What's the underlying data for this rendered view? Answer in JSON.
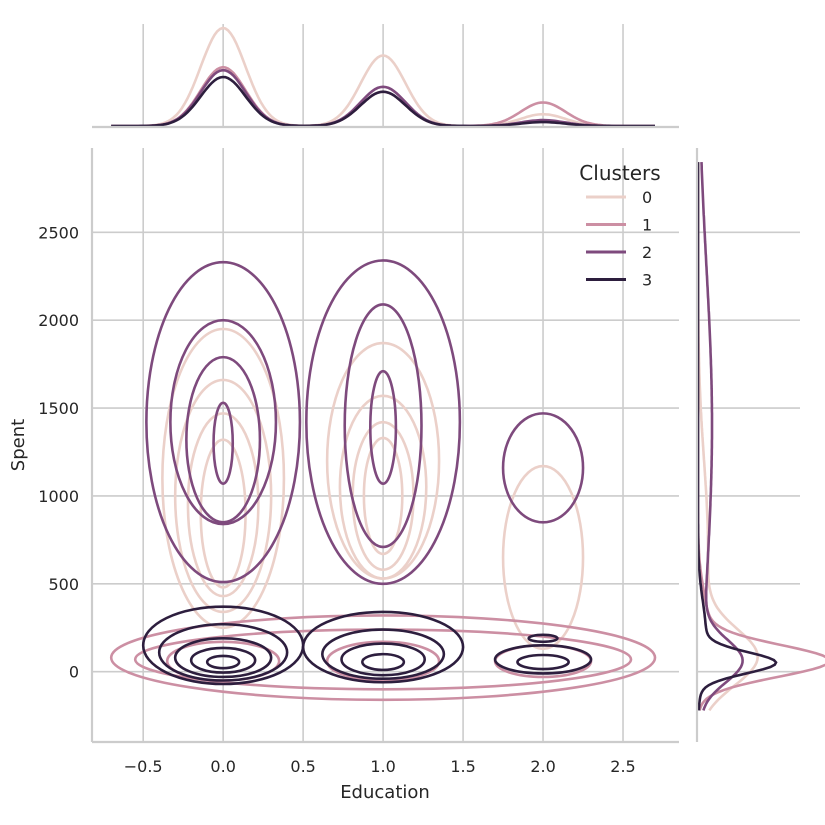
{
  "chart_data": {
    "type": "kde-jointplot",
    "xlabel": "Education",
    "ylabel": "Spent",
    "xlim": [
      -0.82,
      2.85
    ],
    "ylim": [
      -400,
      2980
    ],
    "x_ticks": [
      -0.5,
      0.0,
      0.5,
      1.0,
      1.5,
      2.0,
      2.5
    ],
    "x_tick_labels": [
      "−0.5",
      "0.0",
      "0.5",
      "1.0",
      "1.5",
      "2.0",
      "2.5"
    ],
    "y_ticks": [
      0,
      500,
      1000,
      1500,
      2000,
      2500
    ],
    "y_tick_labels": [
      "0",
      "500",
      "1000",
      "1500",
      "2000",
      "2500"
    ],
    "grid": true,
    "legend": {
      "title": "Clusters",
      "placement": "top-right"
    },
    "series": [
      {
        "name": "0",
        "color": "#ebd0c9",
        "marginal_x": [
          [
            0,
            1.0
          ],
          [
            1,
            0.72
          ],
          [
            2,
            0.12
          ]
        ],
        "marginal_y_peak": 600,
        "contours": [
          {
            "cx": 0.0,
            "cy": 1100,
            "rx": 0.38,
            "ry": 850,
            "waist_cy": null
          },
          {
            "cx": 0.0,
            "cy": 1000,
            "rx": 0.3,
            "ry": 660
          },
          {
            "cx": 0.0,
            "cy": 950,
            "rx": 0.22,
            "ry": 520
          },
          {
            "cx": 0.0,
            "cy": 900,
            "rx": 0.14,
            "ry": 420
          },
          {
            "cx": 1.0,
            "cy": 1200,
            "rx": 0.35,
            "ry": 670
          },
          {
            "cx": 1.0,
            "cy": 1050,
            "rx": 0.27,
            "ry": 520
          },
          {
            "cx": 1.0,
            "cy": 1000,
            "rx": 0.19,
            "ry": 420
          },
          {
            "cx": 1.0,
            "cy": 1000,
            "rx": 0.12,
            "ry": 330
          },
          {
            "cx": 2.0,
            "cy": 650,
            "rx": 0.25,
            "ry": 520
          }
        ]
      },
      {
        "name": "1",
        "color": "#cc8fa3",
        "marginal_x": [
          [
            0,
            0.6
          ],
          [
            1,
            0.35
          ],
          [
            2,
            0.24
          ]
        ],
        "contours": [
          {
            "cx": 1.0,
            "cy": 80,
            "rx": 1.7,
            "ry": 240
          },
          {
            "cx": 1.0,
            "cy": 70,
            "rx": 1.55,
            "ry": 170
          },
          {
            "cx": 0.0,
            "cy": 60,
            "rx": 0.35,
            "ry": 110
          },
          {
            "cx": 1.0,
            "cy": 60,
            "rx": 0.35,
            "ry": 110
          },
          {
            "cx": 2.0,
            "cy": 60,
            "rx": 0.3,
            "ry": 90
          }
        ]
      },
      {
        "name": "2",
        "color": "#7e4a7d",
        "marginal_x": [
          [
            0,
            0.57
          ],
          [
            1,
            0.4
          ],
          [
            2,
            0.06
          ]
        ],
        "contours": [
          {
            "cx": 0.0,
            "cy": 1420,
            "rx": 0.48,
            "ry": 910
          },
          {
            "cx": 1.0,
            "cy": 1420,
            "rx": 0.48,
            "ry": 920
          },
          {
            "cx": 0.0,
            "cy": 1420,
            "rx": 0.33,
            "ry": 580
          },
          {
            "cx": 0.0,
            "cy": 1320,
            "rx": 0.23,
            "ry": 470
          },
          {
            "cx": 0.0,
            "cy": 1300,
            "rx": 0.06,
            "ry": 230
          },
          {
            "cx": 1.0,
            "cy": 1400,
            "rx": 0.24,
            "ry": 690
          },
          {
            "cx": 1.0,
            "cy": 1390,
            "rx": 0.08,
            "ry": 320
          },
          {
            "cx": 2.0,
            "cy": 1160,
            "rx": 0.25,
            "ry": 310
          }
        ]
      },
      {
        "name": "3",
        "color": "#2d1e3e",
        "marginal_x": [
          [
            0,
            0.5
          ],
          [
            1,
            0.35
          ],
          [
            2,
            0.04
          ]
        ],
        "contours": [
          {
            "cx": 0.0,
            "cy": 150,
            "rx": 0.5,
            "ry": 220
          },
          {
            "cx": 0.0,
            "cy": 110,
            "rx": 0.4,
            "ry": 160
          },
          {
            "cx": 0.0,
            "cy": 80,
            "rx": 0.3,
            "ry": 110
          },
          {
            "cx": 0.0,
            "cy": 65,
            "rx": 0.2,
            "ry": 70
          },
          {
            "cx": 0.0,
            "cy": 55,
            "rx": 0.1,
            "ry": 35
          },
          {
            "cx": 1.0,
            "cy": 140,
            "rx": 0.5,
            "ry": 200
          },
          {
            "cx": 1.0,
            "cy": 100,
            "rx": 0.38,
            "ry": 140
          },
          {
            "cx": 1.0,
            "cy": 70,
            "rx": 0.26,
            "ry": 90
          },
          {
            "cx": 1.0,
            "cy": 55,
            "rx": 0.13,
            "ry": 45
          },
          {
            "cx": 2.0,
            "cy": 70,
            "rx": 0.3,
            "ry": 80
          },
          {
            "cx": 2.0,
            "cy": 55,
            "rx": 0.16,
            "ry": 40
          },
          {
            "cx": 2.0,
            "cy": 190,
            "rx": 0.09,
            "ry": 20
          }
        ]
      }
    ]
  }
}
